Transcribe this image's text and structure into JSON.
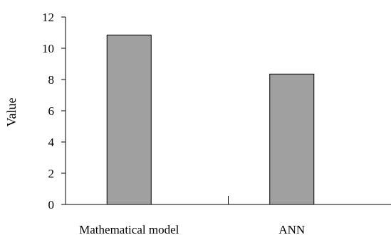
{
  "chart_data": {
    "type": "bar",
    "title": "",
    "xlabel": "",
    "ylabel": "Value",
    "categories": [
      "Mathematical model",
      "ANN"
    ],
    "values": [
      10.85,
      8.35
    ],
    "ylim": [
      0,
      12
    ],
    "yticks": [
      0,
      2,
      4,
      6,
      8,
      10,
      12
    ],
    "grid": false,
    "legend": "none",
    "colors": {
      "bar_fill": "#a0a0a0",
      "bar_stroke": "#000000",
      "axis": "#000000"
    }
  }
}
